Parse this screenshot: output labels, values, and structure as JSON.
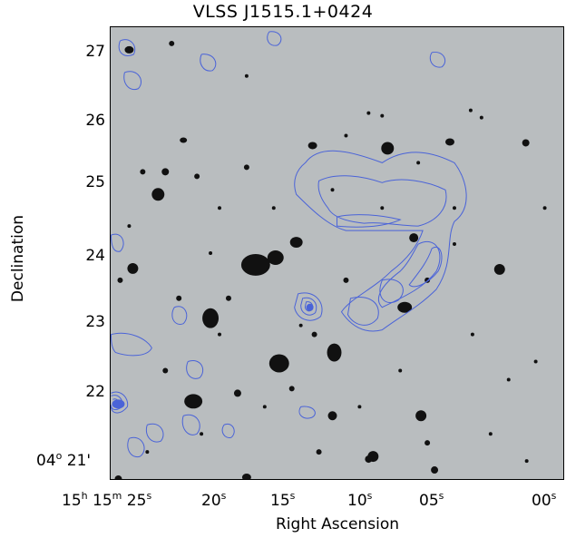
{
  "title": "VLSS J1515.1+0424",
  "axes": {
    "x_title": "Right Ascension",
    "y_title": "Declination",
    "x_ticks": [
      {
        "h": "15",
        "hu": "h",
        "m": "15",
        "mu": "m",
        "s": "25",
        "su": "s"
      },
      {
        "s": "20",
        "su": "s"
      },
      {
        "s": "15",
        "su": "s"
      },
      {
        "s": "10",
        "su": "s"
      },
      {
        "s": "05",
        "su": "s"
      },
      {
        "s": "00",
        "su": "s"
      }
    ],
    "y_ticks": [
      "27",
      "26",
      "25",
      "24",
      "23",
      "22"
    ],
    "y_last_tick": {
      "deg": "04",
      "deg_unit": "o",
      "min": "21",
      "min_unit": "'"
    }
  },
  "image": {
    "description": "Optical sky image with radio contours overlaid",
    "background_color": "#b9bdbf",
    "contour_color": "#4a63d8"
  }
}
